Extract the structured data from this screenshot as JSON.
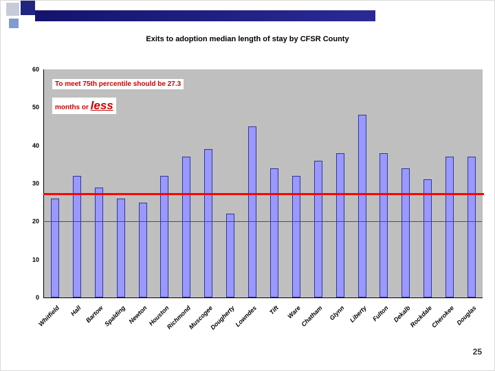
{
  "slide": {
    "title": "Exits to adoption median length of stay by CFSR County",
    "page_number": "25",
    "annotation": {
      "line1": "To meet 75th percentile should be 27.3",
      "line2_prefix": "months or ",
      "line2_emphasis": "less"
    }
  },
  "chart_data": {
    "type": "bar",
    "title": "Exits to adoption median length of stay by CFSR County",
    "categories": [
      "Whitfield",
      "Hall",
      "Bartow",
      "Spalding",
      "Newton",
      "Houston",
      "Richmond",
      "Muscogee",
      "Dougherty",
      "Lowndes",
      "Tift",
      "Ware",
      "Chatham",
      "Glynn",
      "Liberty",
      "Fulton",
      "Dekalb",
      "Rockdale",
      "Cherokee",
      "Douglas"
    ],
    "values": [
      26,
      32,
      29,
      26,
      25,
      32,
      37,
      39,
      22,
      45,
      34,
      32,
      36,
      38,
      48,
      38,
      34,
      31,
      37,
      37
    ],
    "xlabel": "",
    "ylabel": "",
    "ylim": [
      0,
      60
    ],
    "yticks": [
      0,
      10,
      20,
      30,
      40,
      50,
      60
    ],
    "gridline": 20,
    "reference_line": 27.3,
    "legend": "none",
    "colors": {
      "bar": "#9999ff",
      "bar_border": "#333399",
      "plot_bg": "#bfbfbf",
      "reference": "#ff0000",
      "annotation_text": "#cc0000",
      "deco_navy": "#20267f",
      "deco_light_blue": "#7e9cd0",
      "deco_silver": "#c7cbd9"
    }
  }
}
